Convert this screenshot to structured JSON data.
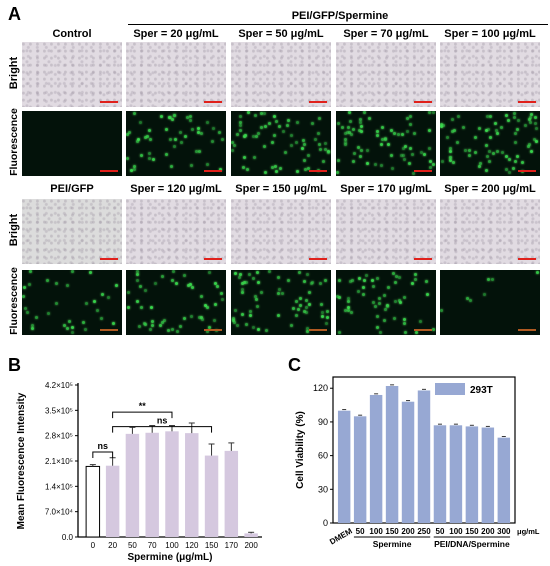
{
  "panel_a": {
    "letter": "A",
    "group_header": "PEI/GFP/Spermine",
    "row1_headers": [
      "Control",
      "Sper = 20 μg/mL",
      "Sper = 50 μg/mL",
      "Sper = 70 μg/mL",
      "Sper = 100 μg/mL"
    ],
    "row2_headers": [
      "PEI/GFP",
      "Sper = 120 μg/mL",
      "Sper = 150 μg/mL",
      "Sper = 170 μg/mL",
      "Sper = 200 μg/mL"
    ],
    "label_bright": "Bright",
    "label_fluorescence": "Fluorescence",
    "fluo_density_top": [
      0,
      0.55,
      0.7,
      0.75,
      0.8
    ],
    "fluo_density_bottom": [
      0.35,
      0.55,
      0.7,
      0.6,
      0.08
    ],
    "scalebar_color": "#e0201b",
    "gfp_color": "#36d64c"
  },
  "panel_b": {
    "letter": "B",
    "chart_data": {
      "type": "bar",
      "ylabel": "Mean Fluorescence Intensity",
      "xlabel": "Spermine (μg/mL)",
      "categories": [
        "0",
        "20",
        "50",
        "70",
        "100",
        "120",
        "150",
        "170",
        "200"
      ],
      "values": [
        195000,
        197000,
        285000,
        288000,
        292000,
        287000,
        225000,
        238000,
        10000
      ],
      "errors": [
        5000,
        22000,
        18000,
        20000,
        16000,
        28000,
        32000,
        22000,
        3000
      ],
      "first_bar_color": "#ffffff",
      "bar_color": "#d5c8df",
      "ylim": [
        0,
        420000
      ],
      "yticks": [
        0,
        70000,
        140000,
        210000,
        280000,
        350000,
        420000
      ],
      "ytick_labels": [
        "0.0",
        "7.0×10⁴",
        "1.4×10⁵",
        "2.1×10⁵",
        "2.8×10⁵",
        "3.5×10⁵",
        "4.2×10⁵"
      ],
      "annotations": [
        {
          "text": "ns",
          "from": 0,
          "to": 1,
          "level": 235000
        },
        {
          "text": "**",
          "from": 1,
          "to": 4,
          "level": 345000
        },
        {
          "text": "ns",
          "from": 1,
          "to": 6,
          "level": 305000
        }
      ]
    }
  },
  "panel_c": {
    "letter": "C",
    "chart_data": {
      "type": "bar",
      "ylabel": "Cell Viability (%)",
      "legend": "293T",
      "bar_color": "#97a8d3",
      "categories": [
        "DMEM",
        "50",
        "100",
        "150",
        "200",
        "250",
        "50",
        "100",
        "150",
        "200",
        "300"
      ],
      "values": [
        100,
        95,
        114,
        122,
        108,
        118,
        87,
        87,
        86,
        85,
        76
      ],
      "errors": [
        1,
        1,
        1,
        1,
        1,
        1,
        1,
        1,
        1,
        1,
        1
      ],
      "ylim": [
        0,
        130
      ],
      "yticks": [
        0,
        30,
        60,
        90,
        120
      ],
      "group_labels": [
        "Spermine",
        "PEI/DNA/Spermine"
      ],
      "unit_label": "μg/mL"
    }
  }
}
